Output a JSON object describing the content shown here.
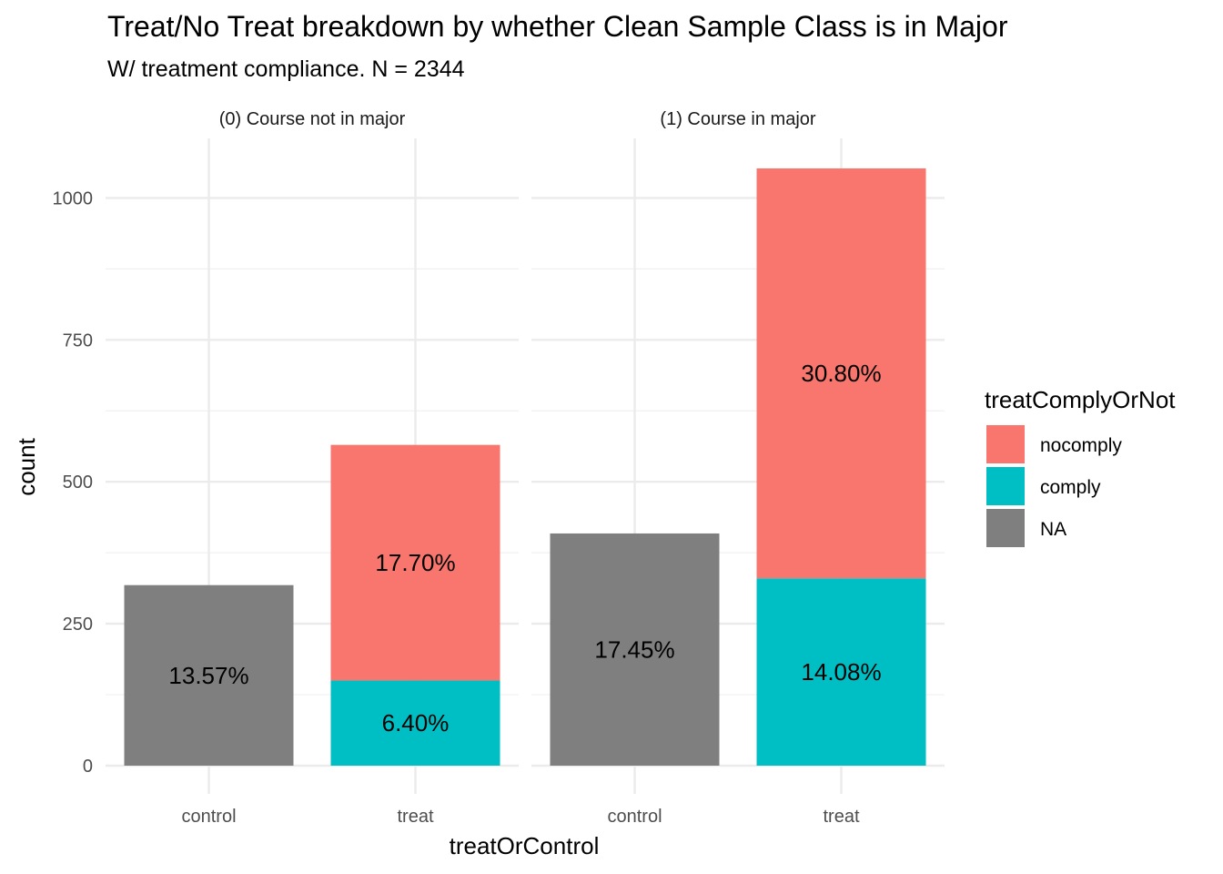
{
  "chart_data": {
    "type": "bar",
    "stacked": true,
    "title": "Treat/No Treat breakdown by whether Clean Sample Class is in Major",
    "subtitle": "W/ treatment compliance. N = 2344",
    "xlabel": "treatOrControl",
    "ylabel": "count",
    "ylim": [
      0,
      1100
    ],
    "yticks": [
      0,
      250,
      500,
      750,
      1000
    ],
    "grid": true,
    "categories": [
      "control",
      "treat"
    ],
    "legend": {
      "title": "treatComplyOrNot",
      "position": "right",
      "entries": [
        {
          "label": "nocomply",
          "color": "#F8766D"
        },
        {
          "label": "comply",
          "color": "#00BFC4"
        },
        {
          "label": "NA",
          "color": "#7F7F7F"
        }
      ]
    },
    "facets": [
      {
        "label": "(0) Course not in major",
        "bars": [
          {
            "category": "control",
            "segments": [
              {
                "series": "NA",
                "value": 318,
                "label": "13.57%"
              }
            ]
          },
          {
            "category": "treat",
            "segments": [
              {
                "series": "comply",
                "value": 150,
                "label": "6.40%"
              },
              {
                "series": "nocomply",
                "value": 415,
                "label": "17.70%"
              }
            ]
          }
        ]
      },
      {
        "label": "(1) Course in major",
        "bars": [
          {
            "category": "control",
            "segments": [
              {
                "series": "NA",
                "value": 409,
                "label": "17.45%"
              }
            ]
          },
          {
            "category": "treat",
            "segments": [
              {
                "series": "comply",
                "value": 330,
                "label": "14.08%"
              },
              {
                "series": "nocomply",
                "value": 722,
                "label": "30.80%"
              }
            ]
          }
        ]
      }
    ]
  }
}
